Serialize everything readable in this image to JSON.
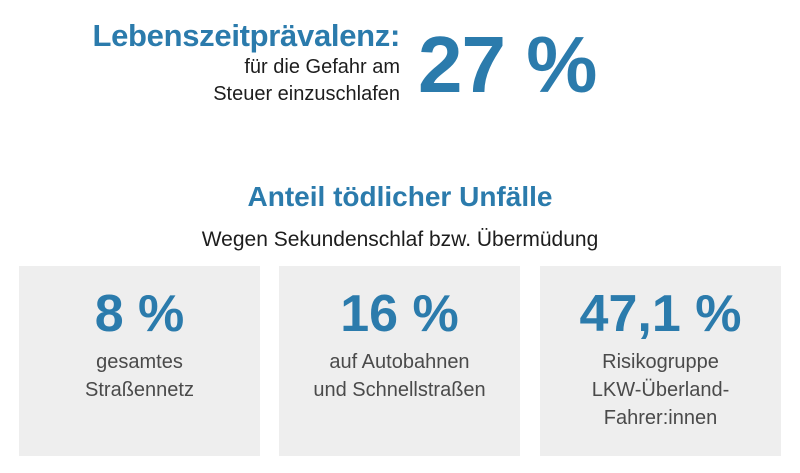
{
  "prevalence": {
    "title": "Lebenszeitprävalenz:",
    "subtitle_lines": [
      "für die Gefahr am",
      "Steuer einzuschlafen"
    ],
    "value": "27 %"
  },
  "section": {
    "title": "Anteil tödlicher Unfälle",
    "subtitle": "Wegen Sekundenschlaf bzw. Übermüdung"
  },
  "cards": [
    {
      "value": "8 %",
      "lines": [
        "gesamtes",
        "Straßennetz"
      ]
    },
    {
      "value": "16 %",
      "lines": [
        "auf Autobahnen",
        "und Schnellstraßen"
      ]
    },
    {
      "value": "47,1 %",
      "lines": [
        "Risikogruppe",
        "LKW-Überland-",
        "Fahrer:innen"
      ]
    }
  ],
  "colors": {
    "accent": "#2b7bac",
    "card_background": "#eeeeee",
    "text": "#1d1d1d"
  }
}
